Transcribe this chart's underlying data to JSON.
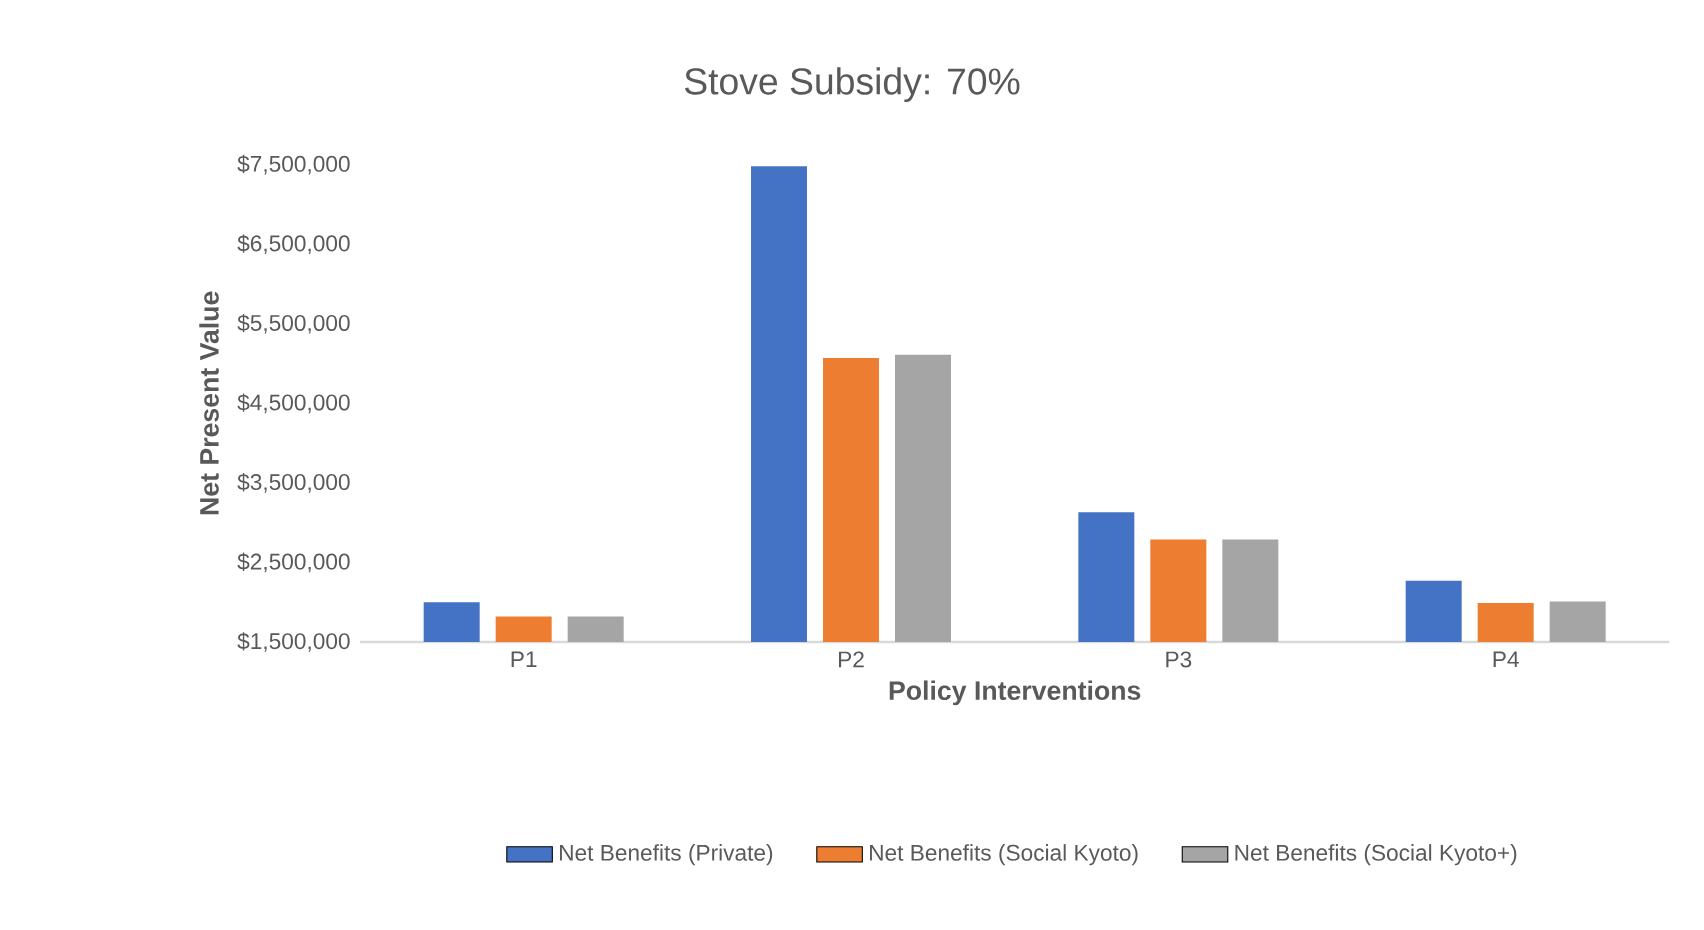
{
  "chart_data": {
    "type": "bar",
    "title": "Stove Subsidy: 70%",
    "xlabel": "Policy Interventions",
    "ylabel": "Net Present Value",
    "categories": [
      "P1",
      "P2",
      "P3",
      "P4"
    ],
    "series": [
      {
        "name": "Net Benefits (Private)",
        "color": "#4472c4",
        "values": [
          2000000,
          7480000,
          3130000,
          2270000
        ]
      },
      {
        "name": "Net Benefits (Social Kyoto)",
        "color": "#ed7d31",
        "values": [
          1820000,
          5070000,
          2790000,
          1990000
        ]
      },
      {
        "name": "Net Benefits (Social Kyoto+)",
        "color": "#a5a5a5",
        "values": [
          1820000,
          5110000,
          2790000,
          2010000
        ]
      }
    ],
    "ylim": [
      1500000,
      7500000
    ],
    "yticks": [
      {
        "value": 1500000,
        "label": "$1,500,000"
      },
      {
        "value": 2500000,
        "label": "$2,500,000"
      },
      {
        "value": 3500000,
        "label": "$3,500,000"
      },
      {
        "value": 4500000,
        "label": "$4,500,000"
      },
      {
        "value": 5500000,
        "label": "$5,500,000"
      },
      {
        "value": 6500000,
        "label": "$6,500,000"
      },
      {
        "value": 7500000,
        "label": "$7,500,000"
      }
    ],
    "legend": "bottom"
  }
}
